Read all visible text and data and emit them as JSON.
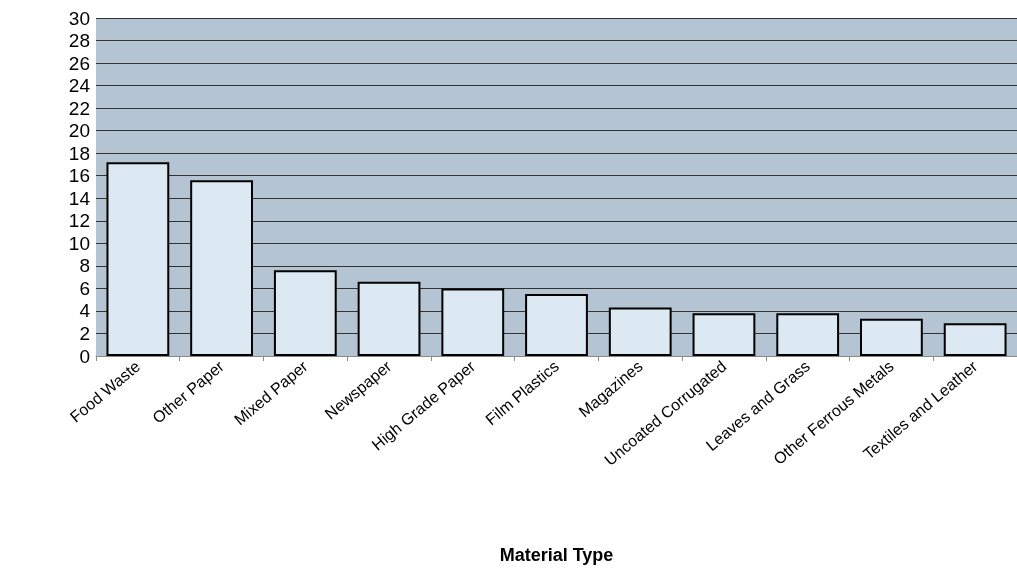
{
  "chart_data": {
    "type": "bar",
    "xlabel": "Material Type",
    "categories": [
      "Food Waste",
      "Other Paper",
      "Mixed Paper",
      "Newspaper",
      "High Grade Paper",
      "Film Plastics",
      "Magazines",
      "Uncoated Corrugated",
      "Leaves and Grass",
      "Other Ferrous Metals",
      "Textiles and Leather"
    ],
    "values": [
      17.2,
      15.6,
      7.6,
      6.6,
      6.0,
      5.5,
      4.3,
      3.8,
      3.8,
      3.3,
      2.9
    ],
    "color": "#dce9f3",
    "ylim": [
      0,
      30
    ],
    "yticks": [
      0,
      2,
      4,
      6,
      8,
      10,
      12,
      14,
      16,
      18,
      20,
      22,
      24,
      26,
      28,
      30
    ],
    "grid": "y"
  }
}
